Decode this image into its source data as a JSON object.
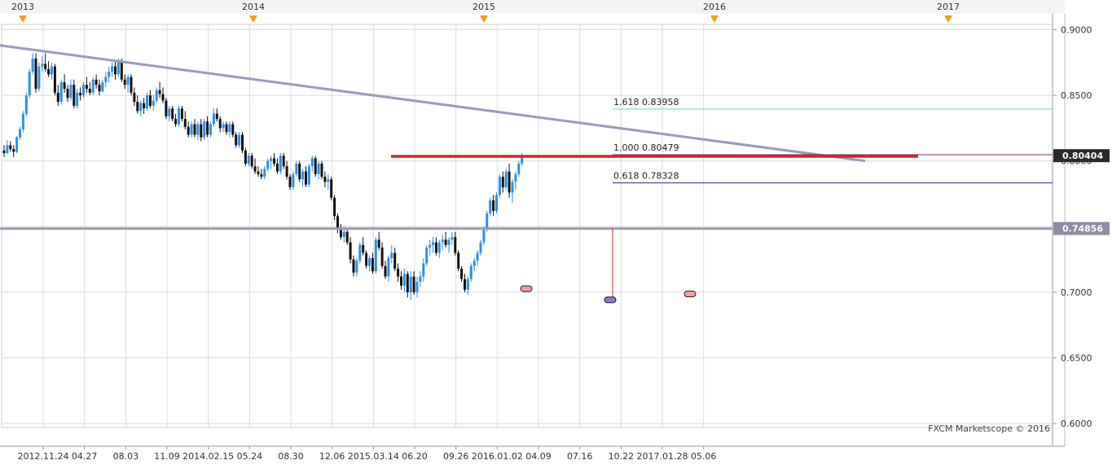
{
  "chart_data": {
    "type": "candlestick",
    "title": "",
    "watermark": "FXCM Marketscope © 2016",
    "colors": {
      "background": "#ffffff",
      "topband": "#f4f4f4",
      "grid": "#dcdcdc",
      "up_candle": "#2f8ee6",
      "down_candle": "#111111",
      "trendline": "#9a9ab8",
      "support_line": "#9a9ab8",
      "neckline": "#e02020",
      "fib_1618": "#6fd3d3",
      "fib_1000": "#7a2a6a",
      "fib_0618": "#2a2a7a",
      "marker_fill": "#f5a0a0",
      "marker_fill_mid": "#8a7ad0",
      "triangle": "#f0a020",
      "axis_text": "#333333"
    },
    "year_labels": [
      "2013",
      "2014",
      "2015",
      "2016",
      "2017"
    ],
    "x_tick_labels": [
      "2012.11.24",
      "04.27",
      "08.03",
      "11.09",
      "2014.02.15",
      "05.24",
      "08.30",
      "12.06",
      "2015.03.14",
      "06.20",
      "09.26",
      "2016.01.02",
      "04.09",
      "07.16",
      "10.22",
      "2017.01.28",
      "05.06"
    ],
    "y_ticks": [
      "0.9000",
      "0.8500",
      "0.8000",
      "0.7500",
      "0.7000",
      "0.6500",
      "0.6000"
    ],
    "ylim": [
      0.597,
      0.904
    ],
    "price_tags": [
      {
        "label": "0.80404",
        "value": 0.80404,
        "style": "dark"
      },
      {
        "label": "0.74856",
        "value": 0.74856,
        "style": "grey"
      }
    ],
    "fib_levels": [
      {
        "label": "1.618 0.83958",
        "value": 0.83958
      },
      {
        "label": "1.000 0.80479",
        "value": 0.80479
      },
      {
        "label": "0.618 0.78328",
        "value": 0.78328
      }
    ],
    "lines": {
      "trendline": {
        "from": [
          "2012.11.24",
          0.888
        ],
        "to": [
          "2016.07.30",
          0.8
        ]
      },
      "horizontal_support": 0.7485,
      "neckline": {
        "from": "2014.08.02",
        "to": "2016.10.22",
        "value": 0.8035
      },
      "measure_vline": {
        "date": "2015.07.06",
        "from": 0.7485,
        "to": 0.6935
      }
    },
    "markers": [
      {
        "date": "2015.03.14",
        "value": 0.7027,
        "kind": "low"
      },
      {
        "date": "2015.07.04",
        "value": 0.6942,
        "kind": "low-mid"
      },
      {
        "date": "2015.11.21",
        "value": 0.6987,
        "kind": "low"
      }
    ],
    "weekly_ohlc_note": "Weekly candles, o/h/l/c",
    "candles": [
      [
        0.808,
        0.812,
        0.803,
        0.806
      ],
      [
        0.806,
        0.816,
        0.805,
        0.812
      ],
      [
        0.812,
        0.815,
        0.807,
        0.809
      ],
      [
        0.809,
        0.812,
        0.803,
        0.807
      ],
      [
        0.807,
        0.819,
        0.806,
        0.818
      ],
      [
        0.818,
        0.826,
        0.816,
        0.824
      ],
      [
        0.824,
        0.838,
        0.822,
        0.836
      ],
      [
        0.836,
        0.852,
        0.834,
        0.85
      ],
      [
        0.85,
        0.87,
        0.848,
        0.868
      ],
      [
        0.868,
        0.882,
        0.866,
        0.878
      ],
      [
        0.878,
        0.882,
        0.852,
        0.855
      ],
      [
        0.855,
        0.875,
        0.853,
        0.872
      ],
      [
        0.872,
        0.88,
        0.868,
        0.874
      ],
      [
        0.874,
        0.882,
        0.868,
        0.87
      ],
      [
        0.87,
        0.876,
        0.864,
        0.866
      ],
      [
        0.866,
        0.875,
        0.862,
        0.872
      ],
      [
        0.872,
        0.874,
        0.85,
        0.852
      ],
      [
        0.852,
        0.858,
        0.842,
        0.845
      ],
      [
        0.845,
        0.862,
        0.843,
        0.86
      ],
      [
        0.86,
        0.866,
        0.852,
        0.855
      ],
      [
        0.855,
        0.858,
        0.845,
        0.848
      ],
      [
        0.848,
        0.862,
        0.846,
        0.858
      ],
      [
        0.858,
        0.862,
        0.84,
        0.842
      ],
      [
        0.842,
        0.855,
        0.84,
        0.852
      ],
      [
        0.852,
        0.856,
        0.846,
        0.85
      ],
      [
        0.85,
        0.86,
        0.848,
        0.858
      ],
      [
        0.858,
        0.864,
        0.852,
        0.855
      ],
      [
        0.855,
        0.86,
        0.85,
        0.852
      ],
      [
        0.852,
        0.864,
        0.85,
        0.862
      ],
      [
        0.862,
        0.866,
        0.855,
        0.858
      ],
      [
        0.858,
        0.862,
        0.85,
        0.853
      ],
      [
        0.853,
        0.862,
        0.852,
        0.86
      ],
      [
        0.86,
        0.868,
        0.856,
        0.864
      ],
      [
        0.864,
        0.872,
        0.86,
        0.868
      ],
      [
        0.868,
        0.875,
        0.864,
        0.872
      ],
      [
        0.872,
        0.876,
        0.862,
        0.866
      ],
      [
        0.866,
        0.878,
        0.864,
        0.876
      ],
      [
        0.876,
        0.878,
        0.86,
        0.862
      ],
      [
        0.862,
        0.866,
        0.855,
        0.858
      ],
      [
        0.858,
        0.866,
        0.852,
        0.864
      ],
      [
        0.864,
        0.866,
        0.85,
        0.852
      ],
      [
        0.852,
        0.856,
        0.842,
        0.845
      ],
      [
        0.845,
        0.85,
        0.836,
        0.838
      ],
      [
        0.838,
        0.846,
        0.834,
        0.844
      ],
      [
        0.844,
        0.848,
        0.836,
        0.84
      ],
      [
        0.84,
        0.852,
        0.838,
        0.85
      ],
      [
        0.85,
        0.854,
        0.84,
        0.842
      ],
      [
        0.842,
        0.85,
        0.838,
        0.846
      ],
      [
        0.846,
        0.856,
        0.844,
        0.854
      ],
      [
        0.854,
        0.86,
        0.848,
        0.851
      ],
      [
        0.851,
        0.856,
        0.844,
        0.846
      ],
      [
        0.846,
        0.848,
        0.832,
        0.834
      ],
      [
        0.834,
        0.842,
        0.83,
        0.84
      ],
      [
        0.84,
        0.842,
        0.83,
        0.832
      ],
      [
        0.832,
        0.836,
        0.826,
        0.828
      ],
      [
        0.828,
        0.842,
        0.826,
        0.84
      ],
      [
        0.84,
        0.842,
        0.83,
        0.832
      ],
      [
        0.832,
        0.838,
        0.824,
        0.826
      ],
      [
        0.826,
        0.83,
        0.818,
        0.82
      ],
      [
        0.82,
        0.83,
        0.818,
        0.828
      ],
      [
        0.828,
        0.832,
        0.818,
        0.82
      ],
      [
        0.82,
        0.83,
        0.816,
        0.828
      ],
      [
        0.828,
        0.832,
        0.815,
        0.818
      ],
      [
        0.818,
        0.832,
        0.816,
        0.83
      ],
      [
        0.83,
        0.834,
        0.818,
        0.82
      ],
      [
        0.82,
        0.83,
        0.818,
        0.828
      ],
      [
        0.828,
        0.84,
        0.826,
        0.836
      ],
      [
        0.836,
        0.84,
        0.83,
        0.832
      ],
      [
        0.832,
        0.834,
        0.822,
        0.825
      ],
      [
        0.825,
        0.83,
        0.822,
        0.828
      ],
      [
        0.828,
        0.83,
        0.82,
        0.822
      ],
      [
        0.822,
        0.83,
        0.818,
        0.828
      ],
      [
        0.828,
        0.83,
        0.818,
        0.82
      ],
      [
        0.82,
        0.822,
        0.81,
        0.812
      ],
      [
        0.812,
        0.822,
        0.81,
        0.82
      ],
      [
        0.82,
        0.822,
        0.806,
        0.808
      ],
      [
        0.808,
        0.81,
        0.796,
        0.798
      ],
      [
        0.798,
        0.806,
        0.796,
        0.804
      ],
      [
        0.804,
        0.806,
        0.794,
        0.796
      ],
      [
        0.796,
        0.802,
        0.79,
        0.792
      ],
      [
        0.792,
        0.796,
        0.788,
        0.79
      ],
      [
        0.79,
        0.794,
        0.786,
        0.788
      ],
      [
        0.788,
        0.796,
        0.786,
        0.794
      ],
      [
        0.794,
        0.802,
        0.792,
        0.8
      ],
      [
        0.8,
        0.804,
        0.794,
        0.802
      ],
      [
        0.802,
        0.806,
        0.796,
        0.798
      ],
      [
        0.798,
        0.802,
        0.79,
        0.792
      ],
      [
        0.792,
        0.806,
        0.79,
        0.804
      ],
      [
        0.804,
        0.806,
        0.794,
        0.796
      ],
      [
        0.796,
        0.8,
        0.786,
        0.788
      ],
      [
        0.788,
        0.79,
        0.778,
        0.78
      ],
      [
        0.78,
        0.792,
        0.778,
        0.79
      ],
      [
        0.79,
        0.8,
        0.788,
        0.798
      ],
      [
        0.798,
        0.8,
        0.784,
        0.786
      ],
      [
        0.786,
        0.794,
        0.78,
        0.792
      ],
      [
        0.792,
        0.796,
        0.78,
        0.782
      ],
      [
        0.782,
        0.798,
        0.78,
        0.796
      ],
      [
        0.796,
        0.804,
        0.792,
        0.802
      ],
      [
        0.802,
        0.804,
        0.788,
        0.79
      ],
      [
        0.79,
        0.8,
        0.786,
        0.798
      ],
      [
        0.798,
        0.8,
        0.786,
        0.788
      ],
      [
        0.788,
        0.792,
        0.78,
        0.784
      ],
      [
        0.784,
        0.79,
        0.778,
        0.786
      ],
      [
        0.786,
        0.788,
        0.77,
        0.772
      ],
      [
        0.772,
        0.774,
        0.755,
        0.758
      ],
      [
        0.758,
        0.76,
        0.745,
        0.748
      ],
      [
        0.748,
        0.752,
        0.74,
        0.742
      ],
      [
        0.742,
        0.75,
        0.738,
        0.746
      ],
      [
        0.746,
        0.748,
        0.736,
        0.738
      ],
      [
        0.738,
        0.742,
        0.722,
        0.725
      ],
      [
        0.725,
        0.728,
        0.712,
        0.715
      ],
      [
        0.715,
        0.726,
        0.712,
        0.724
      ],
      [
        0.724,
        0.738,
        0.722,
        0.736
      ],
      [
        0.736,
        0.742,
        0.728,
        0.73
      ],
      [
        0.73,
        0.732,
        0.718,
        0.72
      ],
      [
        0.72,
        0.728,
        0.716,
        0.726
      ],
      [
        0.726,
        0.73,
        0.714,
        0.716
      ],
      [
        0.716,
        0.742,
        0.714,
        0.74
      ],
      [
        0.74,
        0.746,
        0.732,
        0.734
      ],
      [
        0.734,
        0.738,
        0.718,
        0.72
      ],
      [
        0.72,
        0.724,
        0.71,
        0.712
      ],
      [
        0.712,
        0.728,
        0.708,
        0.726
      ],
      [
        0.726,
        0.736,
        0.722,
        0.73
      ],
      [
        0.73,
        0.734,
        0.716,
        0.718
      ],
      [
        0.718,
        0.722,
        0.708,
        0.712
      ],
      [
        0.712,
        0.716,
        0.702,
        0.705
      ],
      [
        0.705,
        0.718,
        0.7,
        0.714
      ],
      [
        0.714,
        0.716,
        0.696,
        0.7
      ],
      [
        0.7,
        0.716,
        0.694,
        0.712
      ],
      [
        0.712,
        0.716,
        0.698,
        0.7
      ],
      [
        0.7,
        0.712,
        0.696,
        0.708
      ],
      [
        0.708,
        0.716,
        0.704,
        0.712
      ],
      [
        0.712,
        0.726,
        0.708,
        0.722
      ],
      [
        0.722,
        0.736,
        0.72,
        0.734
      ],
      [
        0.734,
        0.74,
        0.728,
        0.736
      ],
      [
        0.736,
        0.742,
        0.73,
        0.738
      ],
      [
        0.738,
        0.742,
        0.728,
        0.73
      ],
      [
        0.73,
        0.74,
        0.726,
        0.738
      ],
      [
        0.738,
        0.744,
        0.732,
        0.74
      ],
      [
        0.74,
        0.746,
        0.734,
        0.736
      ],
      [
        0.736,
        0.742,
        0.73,
        0.74
      ],
      [
        0.74,
        0.746,
        0.736,
        0.742
      ],
      [
        0.742,
        0.746,
        0.728,
        0.73
      ],
      [
        0.73,
        0.732,
        0.716,
        0.718
      ],
      [
        0.718,
        0.72,
        0.708,
        0.71
      ],
      [
        0.71,
        0.714,
        0.7,
        0.702
      ],
      [
        0.702,
        0.712,
        0.698,
        0.71
      ],
      [
        0.71,
        0.722,
        0.708,
        0.72
      ],
      [
        0.72,
        0.726,
        0.716,
        0.724
      ],
      [
        0.724,
        0.732,
        0.72,
        0.73
      ],
      [
        0.73,
        0.74,
        0.728,
        0.738
      ],
      [
        0.738,
        0.75,
        0.736,
        0.748
      ],
      [
        0.748,
        0.762,
        0.746,
        0.76
      ],
      [
        0.76,
        0.772,
        0.758,
        0.77
      ],
      [
        0.77,
        0.774,
        0.758,
        0.762
      ],
      [
        0.762,
        0.776,
        0.76,
        0.774
      ],
      [
        0.774,
        0.79,
        0.772,
        0.788
      ],
      [
        0.788,
        0.792,
        0.776,
        0.78
      ],
      [
        0.78,
        0.794,
        0.778,
        0.792
      ],
      [
        0.792,
        0.798,
        0.772,
        0.776
      ],
      [
        0.776,
        0.786,
        0.768,
        0.784
      ],
      [
        0.784,
        0.792,
        0.778,
        0.79
      ],
      [
        0.79,
        0.8,
        0.788,
        0.798
      ],
      [
        0.798,
        0.806,
        0.796,
        0.804
      ]
    ]
  }
}
